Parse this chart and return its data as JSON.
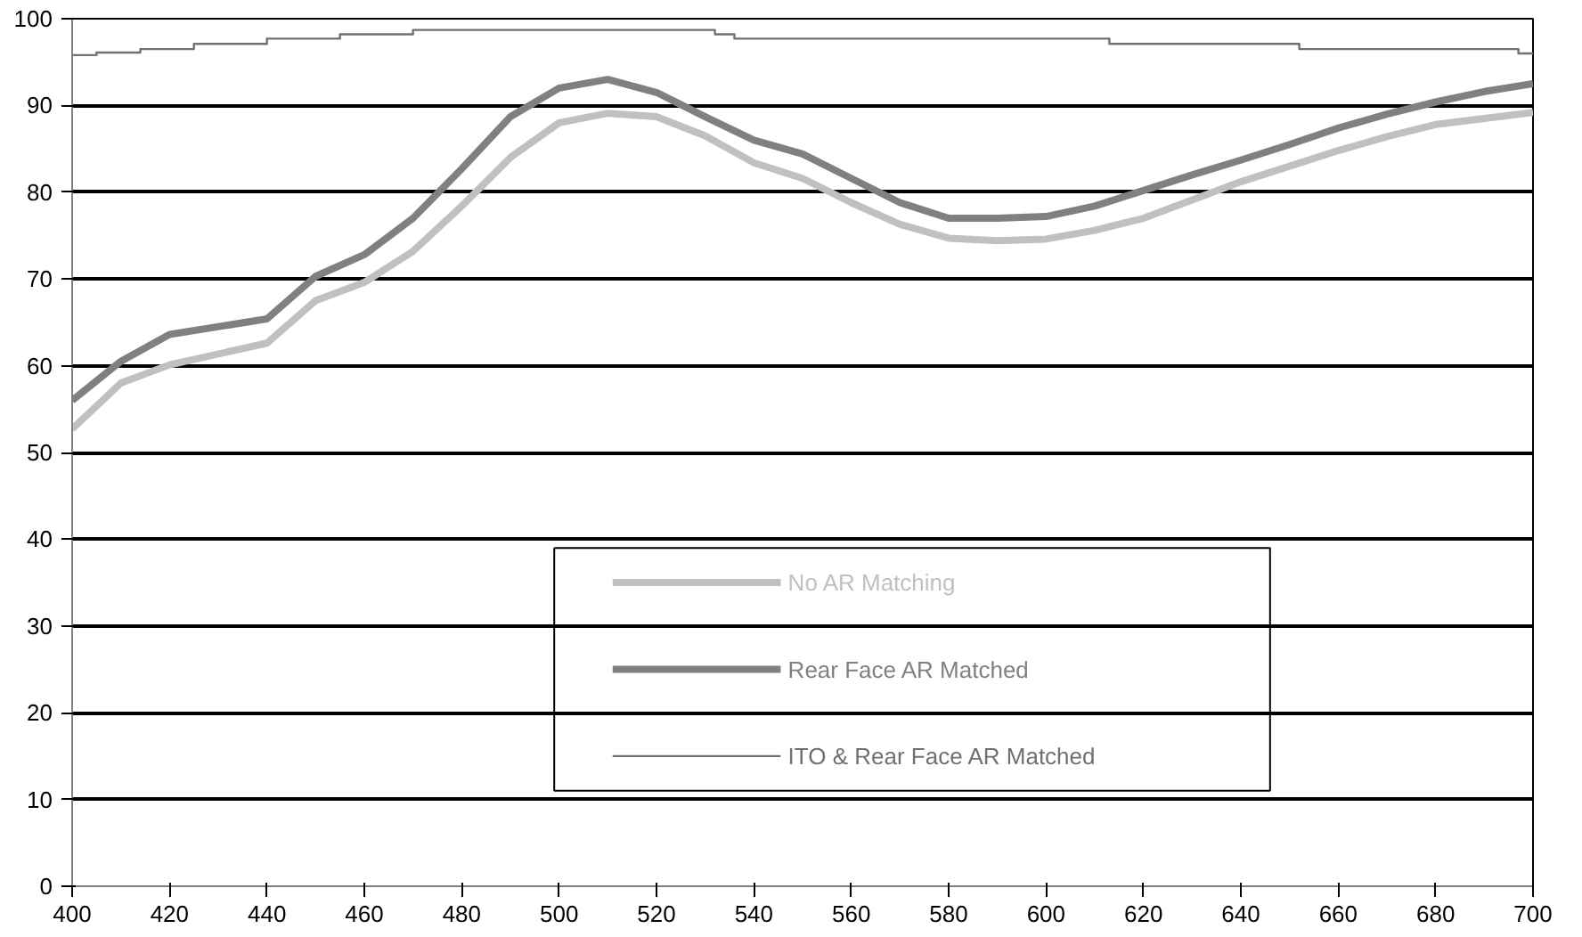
{
  "chart_data": {
    "type": "line",
    "xlim": [
      400,
      700
    ],
    "ylim": [
      0,
      100
    ],
    "xticks": [
      400,
      420,
      440,
      460,
      480,
      500,
      520,
      540,
      560,
      580,
      600,
      620,
      640,
      660,
      680,
      700
    ],
    "yticks": [
      0,
      10,
      20,
      30,
      40,
      50,
      60,
      70,
      80,
      90,
      100
    ],
    "grid": "y",
    "legend": "bottom",
    "marker": "none",
    "series": [
      {
        "name": "No AR Matching",
        "color": "#c0c0c0",
        "x": [
          400,
          410,
          420,
          440,
          450,
          460,
          470,
          480,
          490,
          500,
          510,
          520,
          530,
          540,
          550,
          560,
          570,
          580,
          590,
          600,
          610,
          620,
          630,
          640,
          650,
          660,
          670,
          680,
          690,
          700
        ],
        "values": [
          52.7,
          58,
          60.1,
          62.6,
          67.5,
          69.6,
          73.2,
          78.4,
          84,
          88,
          89.1,
          88.7,
          86.5,
          83.4,
          81.6,
          78.8,
          76.3,
          74.7,
          74.4,
          74.6,
          75.6,
          77,
          79.1,
          81.2,
          83,
          84.8,
          86.4,
          87.8,
          88.5,
          89.2
        ]
      },
      {
        "name": "Rear Face AR Matched",
        "color": "#808080",
        "x": [
          400,
          410,
          420,
          440,
          450,
          460,
          470,
          480,
          490,
          500,
          510,
          520,
          530,
          540,
          550,
          560,
          570,
          580,
          590,
          600,
          610,
          620,
          630,
          640,
          650,
          660,
          670,
          680,
          690,
          700
        ],
        "values": [
          56,
          60.5,
          63.6,
          65.4,
          70.3,
          72.8,
          77,
          82.7,
          88.7,
          92,
          93,
          91.5,
          88.7,
          86,
          84.4,
          81.6,
          78.8,
          77,
          77,
          77.2,
          78.4,
          80.2,
          82,
          83.7,
          85.5,
          87.4,
          89,
          90.4,
          91.6,
          92.5
        ]
      },
      {
        "name": "ITO & Rear Face AR Matched",
        "color": "#707070",
        "type": "step",
        "x": [
          400,
          405,
          414,
          425,
          440,
          455,
          470,
          532,
          536,
          613,
          652,
          697,
          700
        ],
        "values": [
          95.8,
          96.1,
          96.5,
          97.1,
          97.7,
          98.2,
          98.7,
          98.2,
          97.7,
          97.1,
          96.5,
          96,
          96
        ]
      }
    ]
  }
}
